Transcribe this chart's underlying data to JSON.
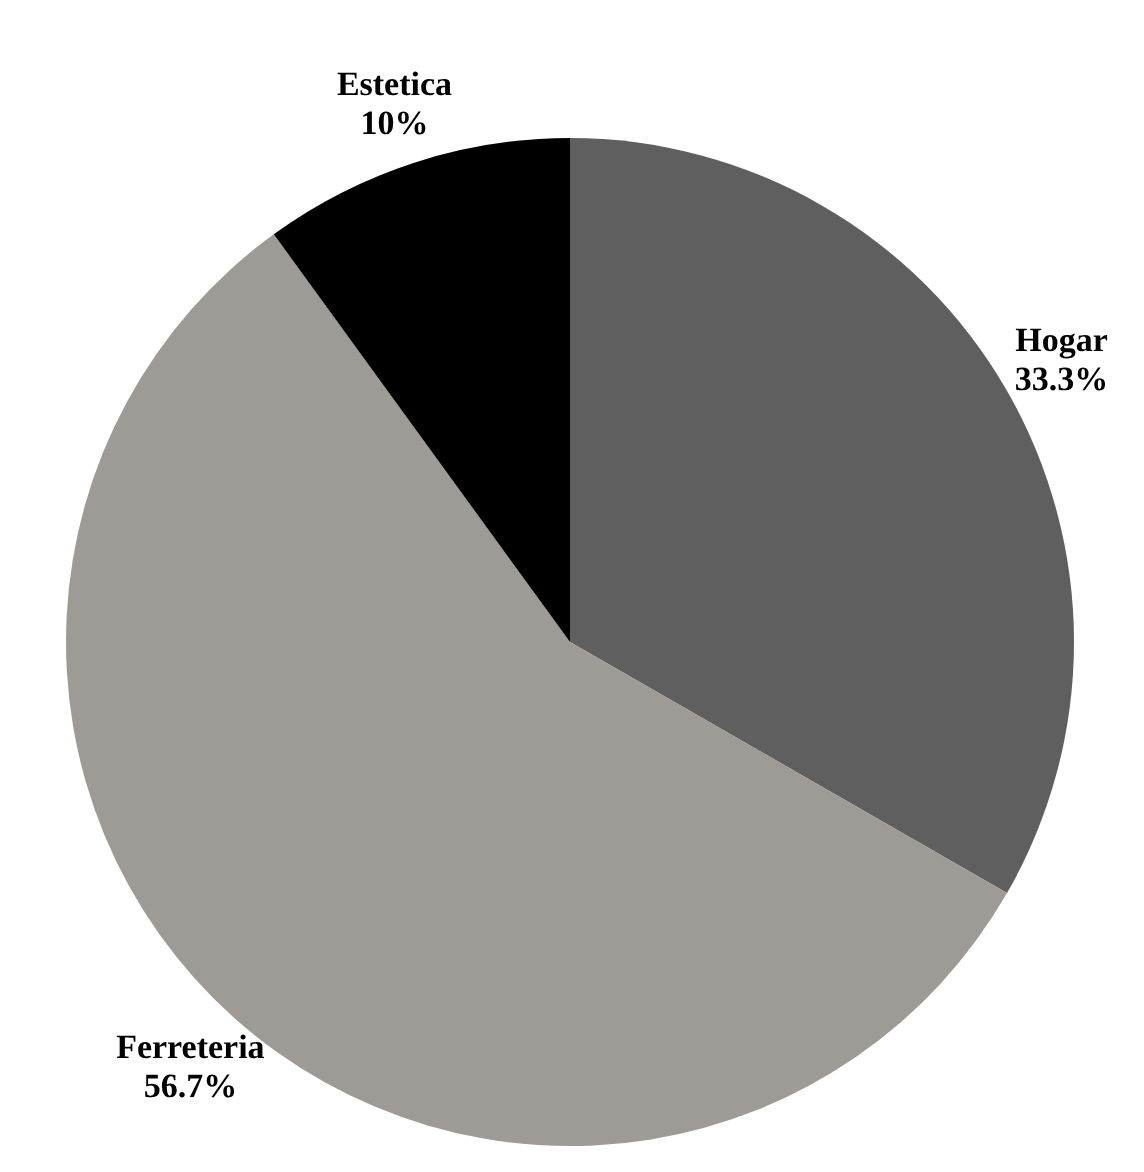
{
  "chart_data": {
    "type": "pie",
    "categories": [
      "Hogar",
      "Ferreteria",
      "Estetica"
    ],
    "values": [
      33.3,
      56.7,
      10
    ],
    "colors": [
      "#5f5f5f",
      "#9e9a96",
      "#000000"
    ],
    "value_labels": [
      "33.3%",
      "56.7%",
      "10%"
    ]
  }
}
